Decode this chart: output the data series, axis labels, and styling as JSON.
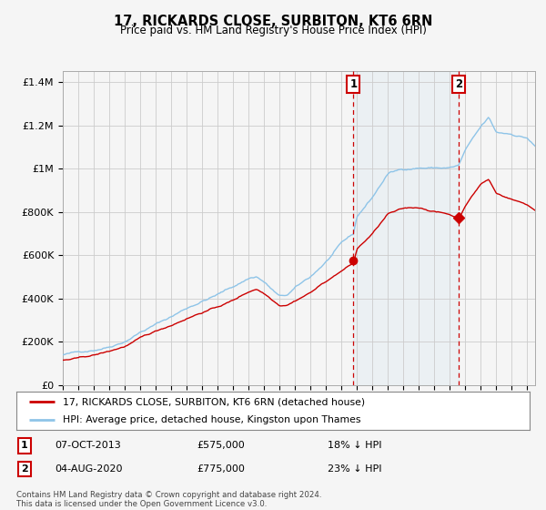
{
  "title": "17, RICKARDS CLOSE, SURBITON, KT6 6RN",
  "subtitle": "Price paid vs. HM Land Registry's House Price Index (HPI)",
  "legend_line1": "17, RICKARDS CLOSE, SURBITON, KT6 6RN (detached house)",
  "legend_line2": "HPI: Average price, detached house, Kingston upon Thames",
  "annotation1_label": "1",
  "annotation1_date": "07-OCT-2013",
  "annotation1_price": 575000,
  "annotation1_pct": "18% ↓ HPI",
  "annotation1_year": 2013.77,
  "annotation2_label": "2",
  "annotation2_date": "04-AUG-2020",
  "annotation2_price": 775000,
  "annotation2_pct": "23% ↓ HPI",
  "annotation2_year": 2020.58,
  "ylabel_ticks": [
    "£0",
    "£200K",
    "£400K",
    "£600K",
    "£800K",
    "£1M",
    "£1.2M",
    "£1.4M"
  ],
  "ylabel_values": [
    0,
    200000,
    400000,
    600000,
    800000,
    1000000,
    1200000,
    1400000
  ],
  "hpi_color": "#8ec4e8",
  "price_color": "#cc0000",
  "vline_color": "#cc0000",
  "shade_color": "#ddeeff",
  "background_color": "#f5f5f5",
  "grid_color": "#cccccc",
  "footer": "Contains HM Land Registry data © Crown copyright and database right 2024.\nThis data is licensed under the Open Government Licence v3.0.",
  "xmin": 1995.0,
  "xmax": 2025.5,
  "ymin": 0,
  "ymax": 1450000
}
